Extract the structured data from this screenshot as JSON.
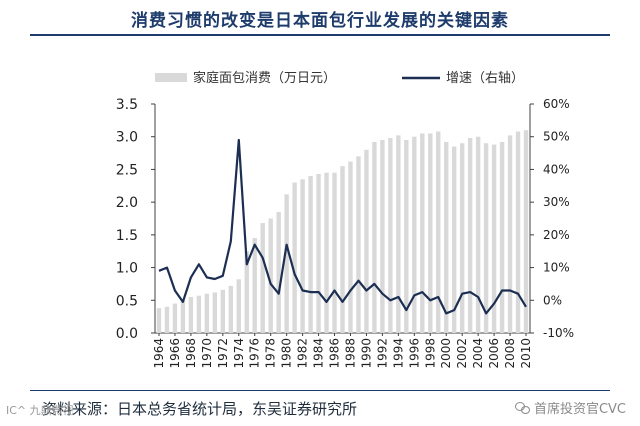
{
  "title": "消费习惯的改变是日本面包行业发展的关键因素",
  "source": "资料来源：日本总务省统计局，东吴证券研究所",
  "watermark": "首席投资官CVC",
  "watermark_left": "IC^ 九鼎微视",
  "colors": {
    "bar": "#d9d9d9",
    "line": "#1c2f52",
    "axis": "#404040",
    "title": "#1d3b6b"
  },
  "chart_data": {
    "type": "bar+line",
    "title": "消费习惯的改变是日本面包行业发展的关键因素",
    "categories": [
      "1964",
      "1965",
      "1966",
      "1967",
      "1968",
      "1969",
      "1970",
      "1971",
      "1972",
      "1973",
      "1974",
      "1975",
      "1976",
      "1977",
      "1978",
      "1979",
      "1980",
      "1981",
      "1982",
      "1983",
      "1984",
      "1985",
      "1986",
      "1987",
      "1988",
      "1989",
      "1990",
      "1991",
      "1992",
      "1993",
      "1994",
      "1995",
      "1996",
      "1997",
      "1998",
      "1999",
      "2000",
      "2001",
      "2002",
      "2003",
      "2004",
      "2005",
      "2006",
      "2007",
      "2008",
      "2009",
      "2010"
    ],
    "x_tick_labels": [
      "1964",
      "1966",
      "1968",
      "1970",
      "1972",
      "1974",
      "1976",
      "1978",
      "1980",
      "1982",
      "1984",
      "1986",
      "1988",
      "1990",
      "1992",
      "1994",
      "1996",
      "1998",
      "2000",
      "2002",
      "2004",
      "2006",
      "2008",
      "2010"
    ],
    "series": [
      {
        "name": "家庭面包消费（万日元）",
        "type": "bar",
        "axis": "left",
        "values": [
          0.38,
          0.4,
          0.45,
          0.5,
          0.55,
          0.57,
          0.6,
          0.62,
          0.66,
          0.72,
          0.82,
          1.25,
          1.45,
          1.68,
          1.75,
          1.85,
          2.12,
          2.3,
          2.35,
          2.4,
          2.43,
          2.45,
          2.45,
          2.55,
          2.62,
          2.7,
          2.8,
          2.92,
          2.95,
          2.98,
          3.02,
          2.95,
          3.0,
          3.05,
          3.05,
          3.08,
          2.92,
          2.85,
          2.9,
          2.98,
          3.0,
          2.9,
          2.88,
          2.92,
          3.02,
          3.08,
          3.1
        ]
      },
      {
        "name": "增速（右轴）",
        "type": "line",
        "axis": "right",
        "values": [
          9,
          10,
          3,
          -0.5,
          7,
          11,
          7,
          6.5,
          7.5,
          18,
          49,
          11,
          17,
          13,
          5,
          2,
          17,
          8,
          3,
          2.5,
          2.5,
          -0.5,
          3,
          -0.5,
          3,
          6,
          3,
          5,
          2,
          0,
          1,
          -3,
          1.5,
          2.5,
          0,
          1,
          -4,
          -3,
          2,
          2.5,
          1,
          -4,
          -1,
          3,
          3,
          2,
          -2
        ]
      }
    ],
    "left_axis": {
      "min": 0,
      "max": 3.5,
      "ticks": [
        "0.0",
        "0.5",
        "1.0",
        "1.5",
        "2.0",
        "2.5",
        "3.0",
        "3.5"
      ]
    },
    "right_axis": {
      "min": -10,
      "max": 60,
      "ticks": [
        "-10%",
        "0%",
        "10%",
        "20%",
        "30%",
        "40%",
        "50%",
        "60%"
      ]
    },
    "legend": [
      "家庭面包消费（万日元）",
      "增速（右轴）"
    ],
    "legend_position": "top"
  }
}
